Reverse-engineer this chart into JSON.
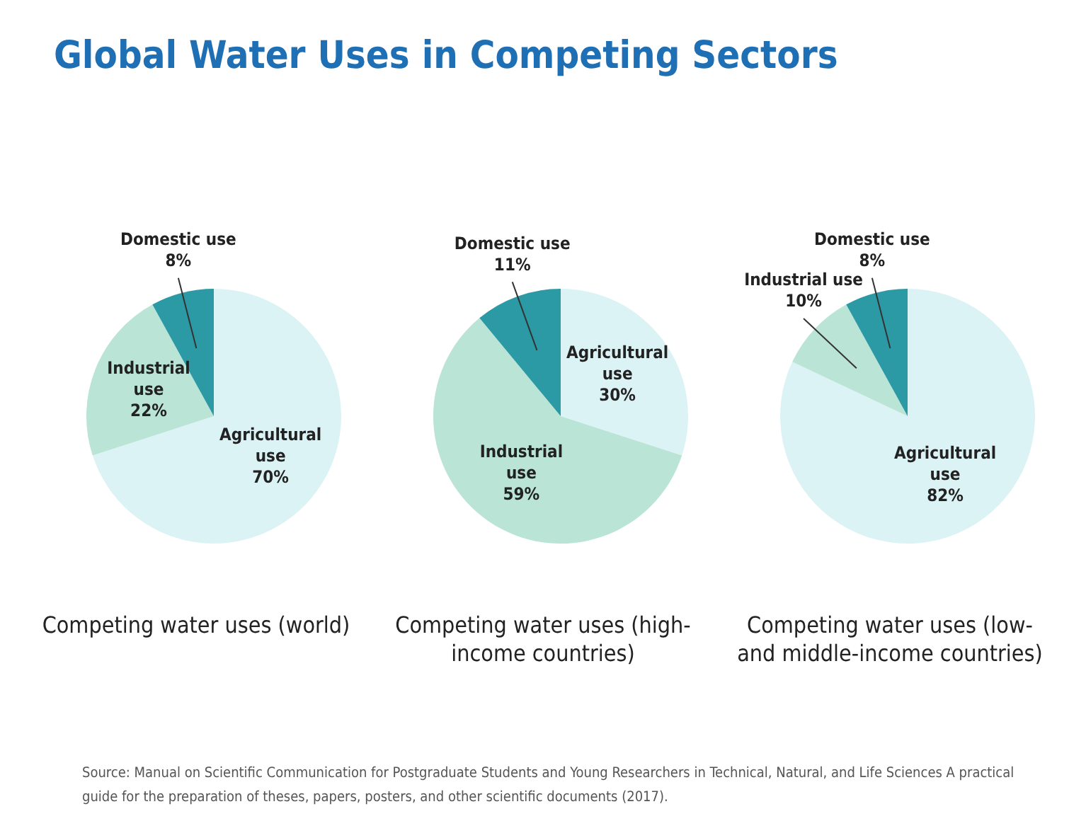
{
  "chart_data": [
    {
      "type": "other",
      "title": "Global Water Uses in Competing Sectors"
    },
    {
      "type": "pie",
      "title": "Competing water uses (world)",
      "categories": [
        "Agricultural use",
        "Industrial use",
        "Domestic use"
      ],
      "values": [
        70,
        22,
        8
      ],
      "value_labels": [
        "70%",
        "22%",
        "8%"
      ],
      "colors": [
        "#dcf3f5",
        "#b9e4d6",
        "#2b9aa5"
      ],
      "legend": false
    },
    {
      "type": "pie",
      "title": "Competing water uses (high-income countries)",
      "categories": [
        "Agricultural use",
        "Industrial use",
        "Domestic use"
      ],
      "values": [
        30,
        59,
        11
      ],
      "value_labels": [
        "30%",
        "59%",
        "11%"
      ],
      "colors": [
        "#dcf3f5",
        "#b9e4d6",
        "#2b9aa5"
      ],
      "legend": false
    },
    {
      "type": "pie",
      "title": "Competing water uses (low- and middle-income countries)",
      "categories": [
        "Agricultural use",
        "Industrial use",
        "Domestic use"
      ],
      "values": [
        82,
        10,
        8
      ],
      "value_labels": [
        "82%",
        "10%",
        "8%"
      ],
      "colors": [
        "#dcf3f5",
        "#b9e4d6",
        "#2b9aa5"
      ],
      "legend": false
    },
    {
      "type": "other",
      "annotations": [
        "Source: Manual on Scientific Communication for Postgraduate Students and Young Researchers in Technical, Natural, and Life Sciences A practical guide for the preparation of theses, papers, posters, and other scientific documents (2017)."
      ]
    }
  ]
}
